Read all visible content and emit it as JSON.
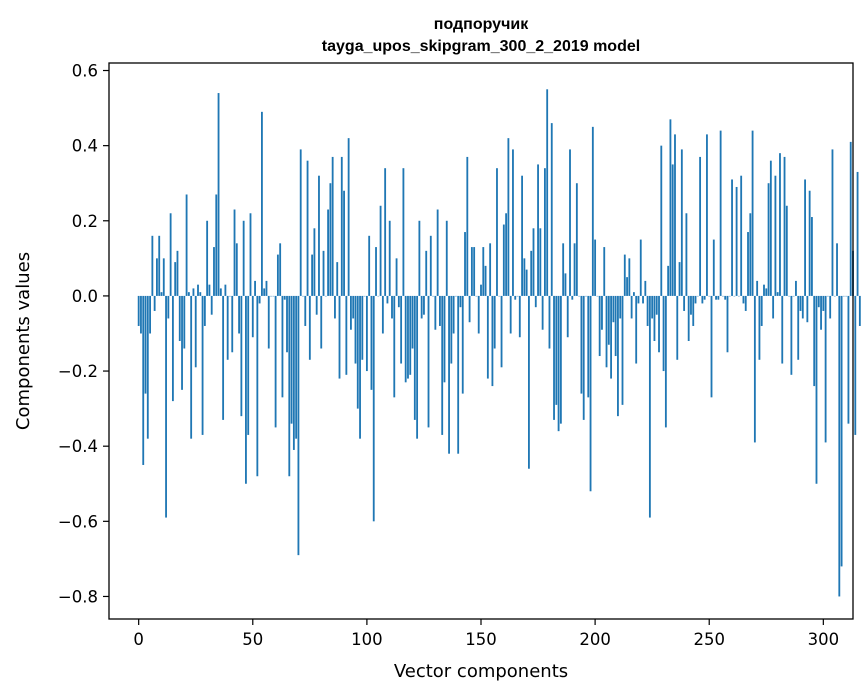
{
  "chart_data": {
    "type": "bar",
    "title": "подпоручик",
    "subtitle": "tayga_upos_skipgram_300_2_2019 model",
    "xlabel": "Vector components",
    "ylabel": "Components values",
    "xlim": [
      -13,
      313
    ],
    "ylim": [
      -0.86,
      0.62
    ],
    "xticks": [
      0,
      50,
      100,
      150,
      200,
      250,
      300
    ],
    "yticks": [
      -0.8,
      -0.6,
      -0.4,
      -0.2,
      0.0,
      0.2,
      0.4,
      0.6
    ],
    "ytick_labels": [
      "−0.8",
      "−0.6",
      "−0.4",
      "−0.2",
      "0.0",
      "0.2",
      "0.4",
      "0.6"
    ],
    "bar_color": "#1f77b4",
    "grid": false,
    "values": [
      -0.08,
      -0.1,
      -0.45,
      -0.26,
      -0.38,
      -0.1,
      0.16,
      -0.04,
      0.1,
      0.16,
      0.01,
      0.1,
      -0.59,
      -0.06,
      0.22,
      -0.28,
      0.09,
      0.12,
      -0.12,
      -0.25,
      -0.14,
      0.27,
      0.01,
      -0.38,
      0.02,
      -0.19,
      0.03,
      0.01,
      -0.37,
      -0.08,
      0.2,
      0.03,
      -0.05,
      0.13,
      0.27,
      0.54,
      0.02,
      -0.33,
      0.03,
      -0.17,
      0.0,
      -0.15,
      0.23,
      0.14,
      -0.1,
      -0.32,
      0.2,
      -0.5,
      -0.37,
      0.22,
      -0.11,
      0.04,
      -0.48,
      -0.02,
      0.49,
      0.02,
      0.04,
      -0.14,
      0.0,
      0.0,
      -0.35,
      0.11,
      0.14,
      -0.27,
      -0.01,
      -0.15,
      -0.48,
      -0.34,
      -0.41,
      -0.38,
      -0.69,
      0.39,
      0.0,
      -0.08,
      0.36,
      -0.17,
      0.11,
      0.18,
      -0.05,
      0.32,
      -0.14,
      0.12,
      0.0,
      0.23,
      0.3,
      0.37,
      -0.06,
      0.09,
      -0.22,
      0.37,
      0.28,
      -0.21,
      0.42,
      -0.09,
      -0.06,
      -0.18,
      -0.3,
      -0.38,
      -0.17,
      0.0,
      -0.2,
      0.16,
      -0.25,
      -0.6,
      0.13,
      0.0,
      0.24,
      -0.1,
      0.34,
      -0.02,
      0.2,
      -0.06,
      -0.27,
      0.1,
      -0.03,
      -0.18,
      0.34,
      -0.23,
      -0.22,
      -0.21,
      -0.14,
      -0.33,
      -0.38,
      0.2,
      -0.06,
      -0.05,
      0.12,
      -0.35,
      0.16,
      0.0,
      -0.09,
      0.23,
      -0.08,
      -0.37,
      -0.23,
      0.2,
      -0.42,
      -0.18,
      -0.1,
      0.0,
      -0.42,
      -0.03,
      -0.26,
      0.17,
      0.37,
      -0.07,
      0.13,
      0.13,
      0.0,
      -0.1,
      0.03,
      0.13,
      0.08,
      -0.22,
      0.14,
      -0.24,
      -0.14,
      0.34,
      0.0,
      -0.19,
      0.19,
      0.22,
      0.42,
      -0.1,
      0.39,
      -0.01,
      0.0,
      -0.11,
      0.32,
      0.1,
      0.07,
      -0.46,
      0.12,
      0.18,
      -0.03,
      0.35,
      0.18,
      -0.09,
      0.34,
      0.55,
      -0.14,
      0.46,
      -0.33,
      -0.29,
      -0.36,
      -0.34,
      0.14,
      0.06,
      -0.11,
      0.39,
      -0.01,
      0.14,
      0.3,
      0.0,
      -0.26,
      -0.33,
      0.0,
      -0.27,
      -0.52,
      0.45,
      0.15,
      0.0,
      -0.16,
      -0.09,
      0.13,
      -0.19,
      -0.13,
      -0.22,
      -0.07,
      -0.16,
      -0.32,
      -0.06,
      -0.29,
      0.11,
      0.05,
      0.1,
      -0.06,
      0.01,
      -0.18,
      -0.02,
      0.15,
      -0.02,
      0.04,
      -0.08,
      -0.59,
      -0.06,
      -0.12,
      -0.05,
      -0.15,
      0.4,
      -0.2,
      -0.35,
      0.08,
      0.47,
      0.35,
      0.43,
      -0.17,
      0.09,
      0.39,
      -0.04,
      0.22,
      -0.12,
      -0.05,
      -0.08,
      -0.02,
      0.0,
      0.37,
      -0.02,
      -0.01,
      0.43,
      0.0,
      -0.27,
      0.15,
      -0.01,
      -0.01,
      0.44,
      0.0,
      -0.01,
      -0.15,
      0.0,
      0.31,
      0.0,
      0.29,
      0.0,
      0.32,
      -0.02,
      -0.04,
      0.17,
      0.22,
      0.44,
      -0.39,
      0.04,
      -0.17,
      -0.08,
      0.03,
      0.02,
      0.3,
      0.36,
      -0.06,
      0.32,
      0.01,
      0.38,
      -0.18,
      0.37,
      0.24,
      0.0,
      -0.21,
      0.0,
      0.04,
      -0.17,
      -0.04,
      -0.06,
      0.31,
      -0.07,
      0.28,
      0.21,
      -0.24,
      -0.5,
      -0.03,
      -0.09,
      -0.04,
      -0.39,
      0.0,
      -0.06,
      0.39,
      0.0,
      0.14,
      -0.8,
      -0.72,
      0.0,
      0.0,
      -0.34,
      0.41,
      0.12,
      -0.37,
      0.33,
      -0.08
    ]
  }
}
